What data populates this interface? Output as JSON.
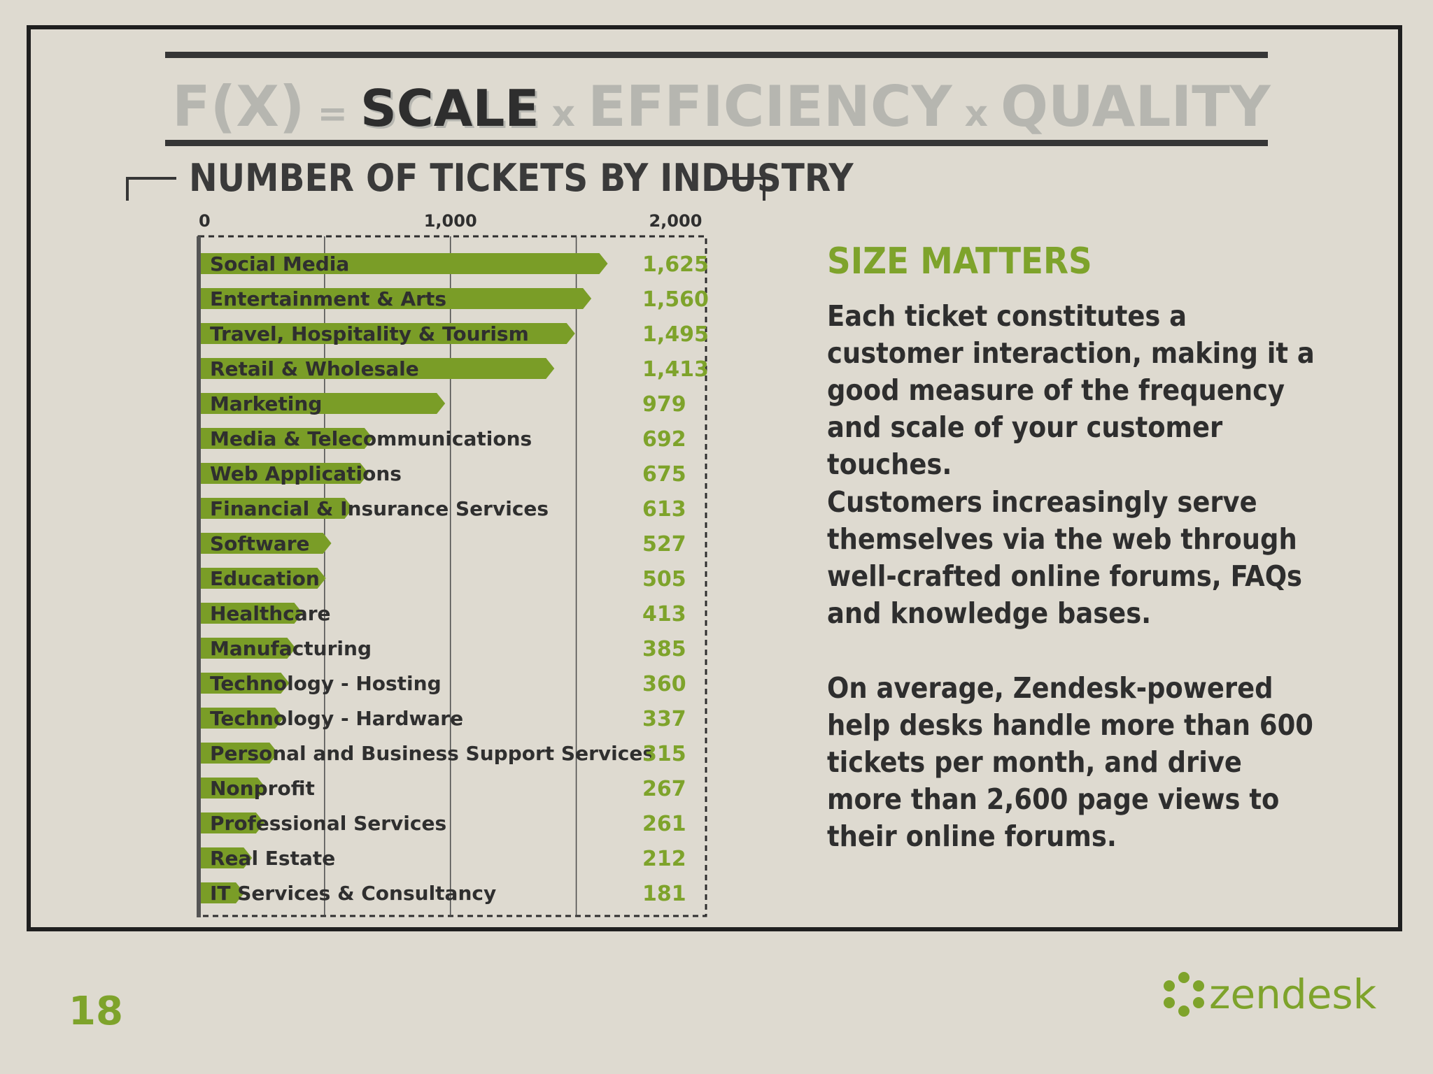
{
  "formula": {
    "fx": "F(X)",
    "equals": "=",
    "scale": "SCALE",
    "times1": "x",
    "efficiency": "EFFICIENCY",
    "times2": "x",
    "quality": "QUALITY"
  },
  "chart_data": {
    "type": "bar",
    "orientation": "horizontal",
    "title": "NUMBER OF TICKETS BY INDUSTRY",
    "categories": [
      "Social Media",
      "Entertainment & Arts",
      "Travel, Hospitality & Tourism",
      "Retail & Wholesale",
      "Marketing",
      "Media & Telecommunications",
      "Web Applications",
      "Financial & Insurance Services",
      "Software",
      "Education",
      "Healthcare",
      "Manufacturing",
      "Technology - Hosting",
      "Technology - Hardware",
      "Personal and Business Support Services",
      "Nonprofit",
      "Professional Services",
      "Real Estate",
      "IT Services & Consultancy"
    ],
    "values": [
      1625,
      1560,
      1495,
      1413,
      979,
      692,
      675,
      613,
      527,
      505,
      413,
      385,
      360,
      337,
      315,
      267,
      261,
      212,
      181
    ],
    "value_labels": [
      "1,625",
      "1,560",
      "1,495",
      "1,413",
      "979",
      "692",
      "675",
      "613",
      "527",
      "505",
      "413",
      "385",
      "360",
      "337",
      "315",
      "267",
      "261",
      "212",
      "181"
    ],
    "xlim": [
      0,
      2000
    ],
    "xticks": [
      {
        "value": 0,
        "label": "0"
      },
      {
        "value": 1000,
        "label": "1,000"
      },
      {
        "value": 2000,
        "label": "2,000"
      }
    ],
    "gridlines_at": [
      500,
      1000,
      1500
    ],
    "bar_color": "#7a9d27",
    "value_label_color": "#7ea32b",
    "axis_color": "#555555"
  },
  "sidebar": {
    "heading": "SIZE MATTERS",
    "paragraphs": [
      "Each ticket constitutes a customer interaction, making it a good measure of the frequency and scale of your customer touches.",
      "Customers increasingly serve themselves via the web through well-crafted online forums, FAQs and knowledge bases.",
      "On average, Zendesk-powered help desks handle more than 600 tickets per month, and drive more than 2,600 page views to their online forums."
    ]
  },
  "footer": {
    "page_number": "18",
    "logo_text": "zendesk"
  },
  "colors": {
    "background": "#dedad0",
    "accent_green": "#7ea32b",
    "dark_text": "#2e2e2e",
    "muted_gray": "#b6b6b0"
  }
}
